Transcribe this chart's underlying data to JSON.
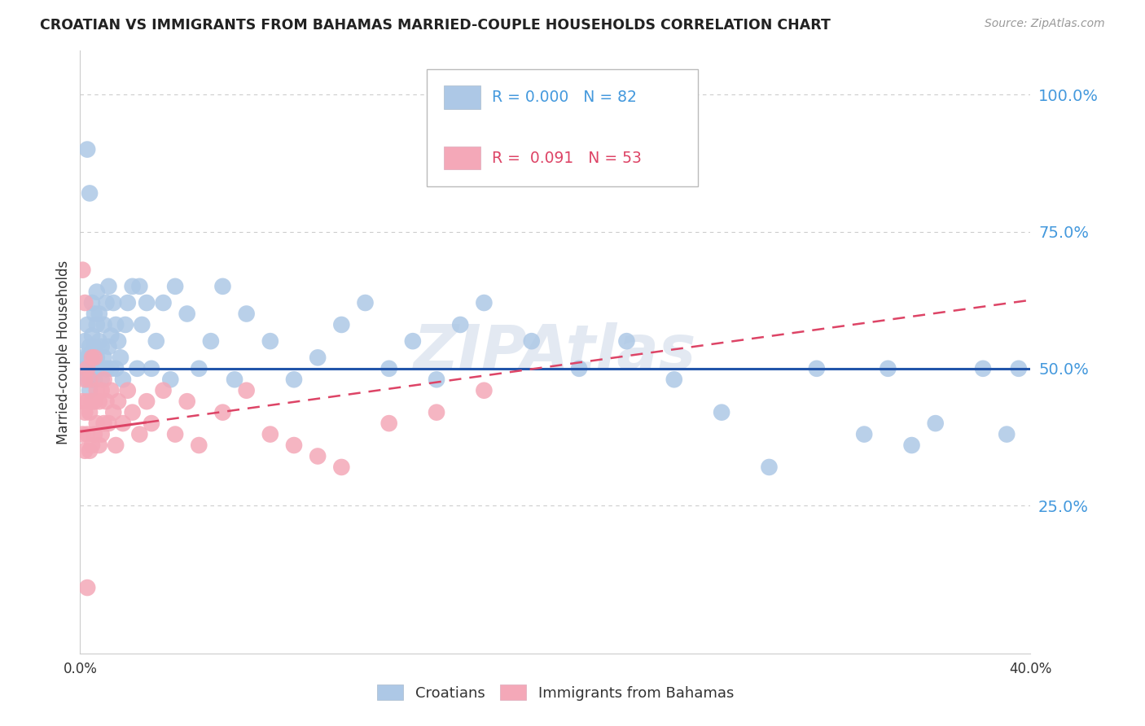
{
  "title": "CROATIAN VS IMMIGRANTS FROM BAHAMAS MARRIED-COUPLE HOUSEHOLDS CORRELATION CHART",
  "source": "Source: ZipAtlas.com",
  "ylabel": "Married-couple Households",
  "blue_R": "0.000",
  "blue_N": "82",
  "pink_R": "0.091",
  "pink_N": "53",
  "blue_color": "#adc8e6",
  "pink_color": "#f4a8b8",
  "blue_line_color": "#2255aa",
  "pink_line_color": "#dd4466",
  "watermark": "ZIPAtlas",
  "background_color": "#ffffff",
  "grid_color": "#cccccc",
  "ytick_color": "#4499dd",
  "xtick_color": "#333333",
  "blue_points_x": [
    0.001,
    0.002,
    0.002,
    0.003,
    0.003,
    0.003,
    0.004,
    0.004,
    0.004,
    0.005,
    0.005,
    0.005,
    0.005,
    0.006,
    0.006,
    0.006,
    0.007,
    0.007,
    0.007,
    0.008,
    0.008,
    0.008,
    0.009,
    0.009,
    0.01,
    0.01,
    0.011,
    0.011,
    0.012,
    0.012,
    0.013,
    0.013,
    0.014,
    0.015,
    0.015,
    0.016,
    0.017,
    0.018,
    0.019,
    0.02,
    0.022,
    0.024,
    0.026,
    0.028,
    0.03,
    0.032,
    0.035,
    0.038,
    0.04,
    0.045,
    0.05,
    0.055,
    0.06,
    0.065,
    0.07,
    0.08,
    0.09,
    0.1,
    0.11,
    0.12,
    0.13,
    0.14,
    0.15,
    0.16,
    0.17,
    0.19,
    0.21,
    0.23,
    0.25,
    0.27,
    0.29,
    0.31,
    0.33,
    0.34,
    0.35,
    0.36,
    0.38,
    0.39,
    0.395,
    0.025,
    0.003,
    0.004
  ],
  "blue_points_y": [
    0.52,
    0.5,
    0.55,
    0.48,
    0.52,
    0.58,
    0.5,
    0.54,
    0.46,
    0.53,
    0.5,
    0.56,
    0.62,
    0.48,
    0.54,
    0.6,
    0.52,
    0.58,
    0.64,
    0.5,
    0.55,
    0.6,
    0.48,
    0.54,
    0.52,
    0.58,
    0.5,
    0.62,
    0.54,
    0.65,
    0.5,
    0.56,
    0.62,
    0.58,
    0.5,
    0.55,
    0.52,
    0.48,
    0.58,
    0.62,
    0.65,
    0.5,
    0.58,
    0.62,
    0.5,
    0.55,
    0.62,
    0.48,
    0.65,
    0.6,
    0.5,
    0.55,
    0.65,
    0.48,
    0.6,
    0.55,
    0.48,
    0.52,
    0.58,
    0.62,
    0.5,
    0.55,
    0.48,
    0.58,
    0.62,
    0.55,
    0.5,
    0.55,
    0.48,
    0.42,
    0.32,
    0.5,
    0.38,
    0.5,
    0.36,
    0.4,
    0.5,
    0.38,
    0.5,
    0.65,
    0.9,
    0.82
  ],
  "pink_points_x": [
    0.001,
    0.001,
    0.002,
    0.002,
    0.002,
    0.003,
    0.003,
    0.003,
    0.004,
    0.004,
    0.004,
    0.005,
    0.005,
    0.005,
    0.006,
    0.006,
    0.006,
    0.007,
    0.007,
    0.008,
    0.008,
    0.009,
    0.009,
    0.01,
    0.01,
    0.011,
    0.012,
    0.013,
    0.014,
    0.015,
    0.016,
    0.018,
    0.02,
    0.022,
    0.025,
    0.028,
    0.03,
    0.035,
    0.04,
    0.045,
    0.05,
    0.06,
    0.07,
    0.08,
    0.09,
    0.1,
    0.11,
    0.13,
    0.15,
    0.17,
    0.001,
    0.002,
    0.003
  ],
  "pink_points_y": [
    0.38,
    0.44,
    0.35,
    0.42,
    0.48,
    0.38,
    0.44,
    0.5,
    0.35,
    0.42,
    0.48,
    0.36,
    0.44,
    0.52,
    0.38,
    0.44,
    0.52,
    0.4,
    0.46,
    0.36,
    0.44,
    0.38,
    0.46,
    0.4,
    0.48,
    0.44,
    0.4,
    0.46,
    0.42,
    0.36,
    0.44,
    0.4,
    0.46,
    0.42,
    0.38,
    0.44,
    0.4,
    0.46,
    0.38,
    0.44,
    0.36,
    0.42,
    0.46,
    0.38,
    0.36,
    0.34,
    0.32,
    0.4,
    0.42,
    0.46,
    0.68,
    0.62,
    0.1
  ],
  "blue_trend_y0": 0.5,
  "blue_trend_y1": 0.5,
  "pink_trend_x0": 0.0,
  "pink_trend_x1": 0.4,
  "pink_trend_y0": 0.385,
  "pink_trend_y1": 0.625,
  "xlim": [
    0.0,
    0.4
  ],
  "ylim": [
    -0.02,
    1.08
  ],
  "ytick_positions": [
    0.25,
    0.5,
    0.75,
    1.0
  ],
  "ytick_labels": [
    "25.0%",
    "50.0%",
    "75.0%",
    "100.0%"
  ]
}
